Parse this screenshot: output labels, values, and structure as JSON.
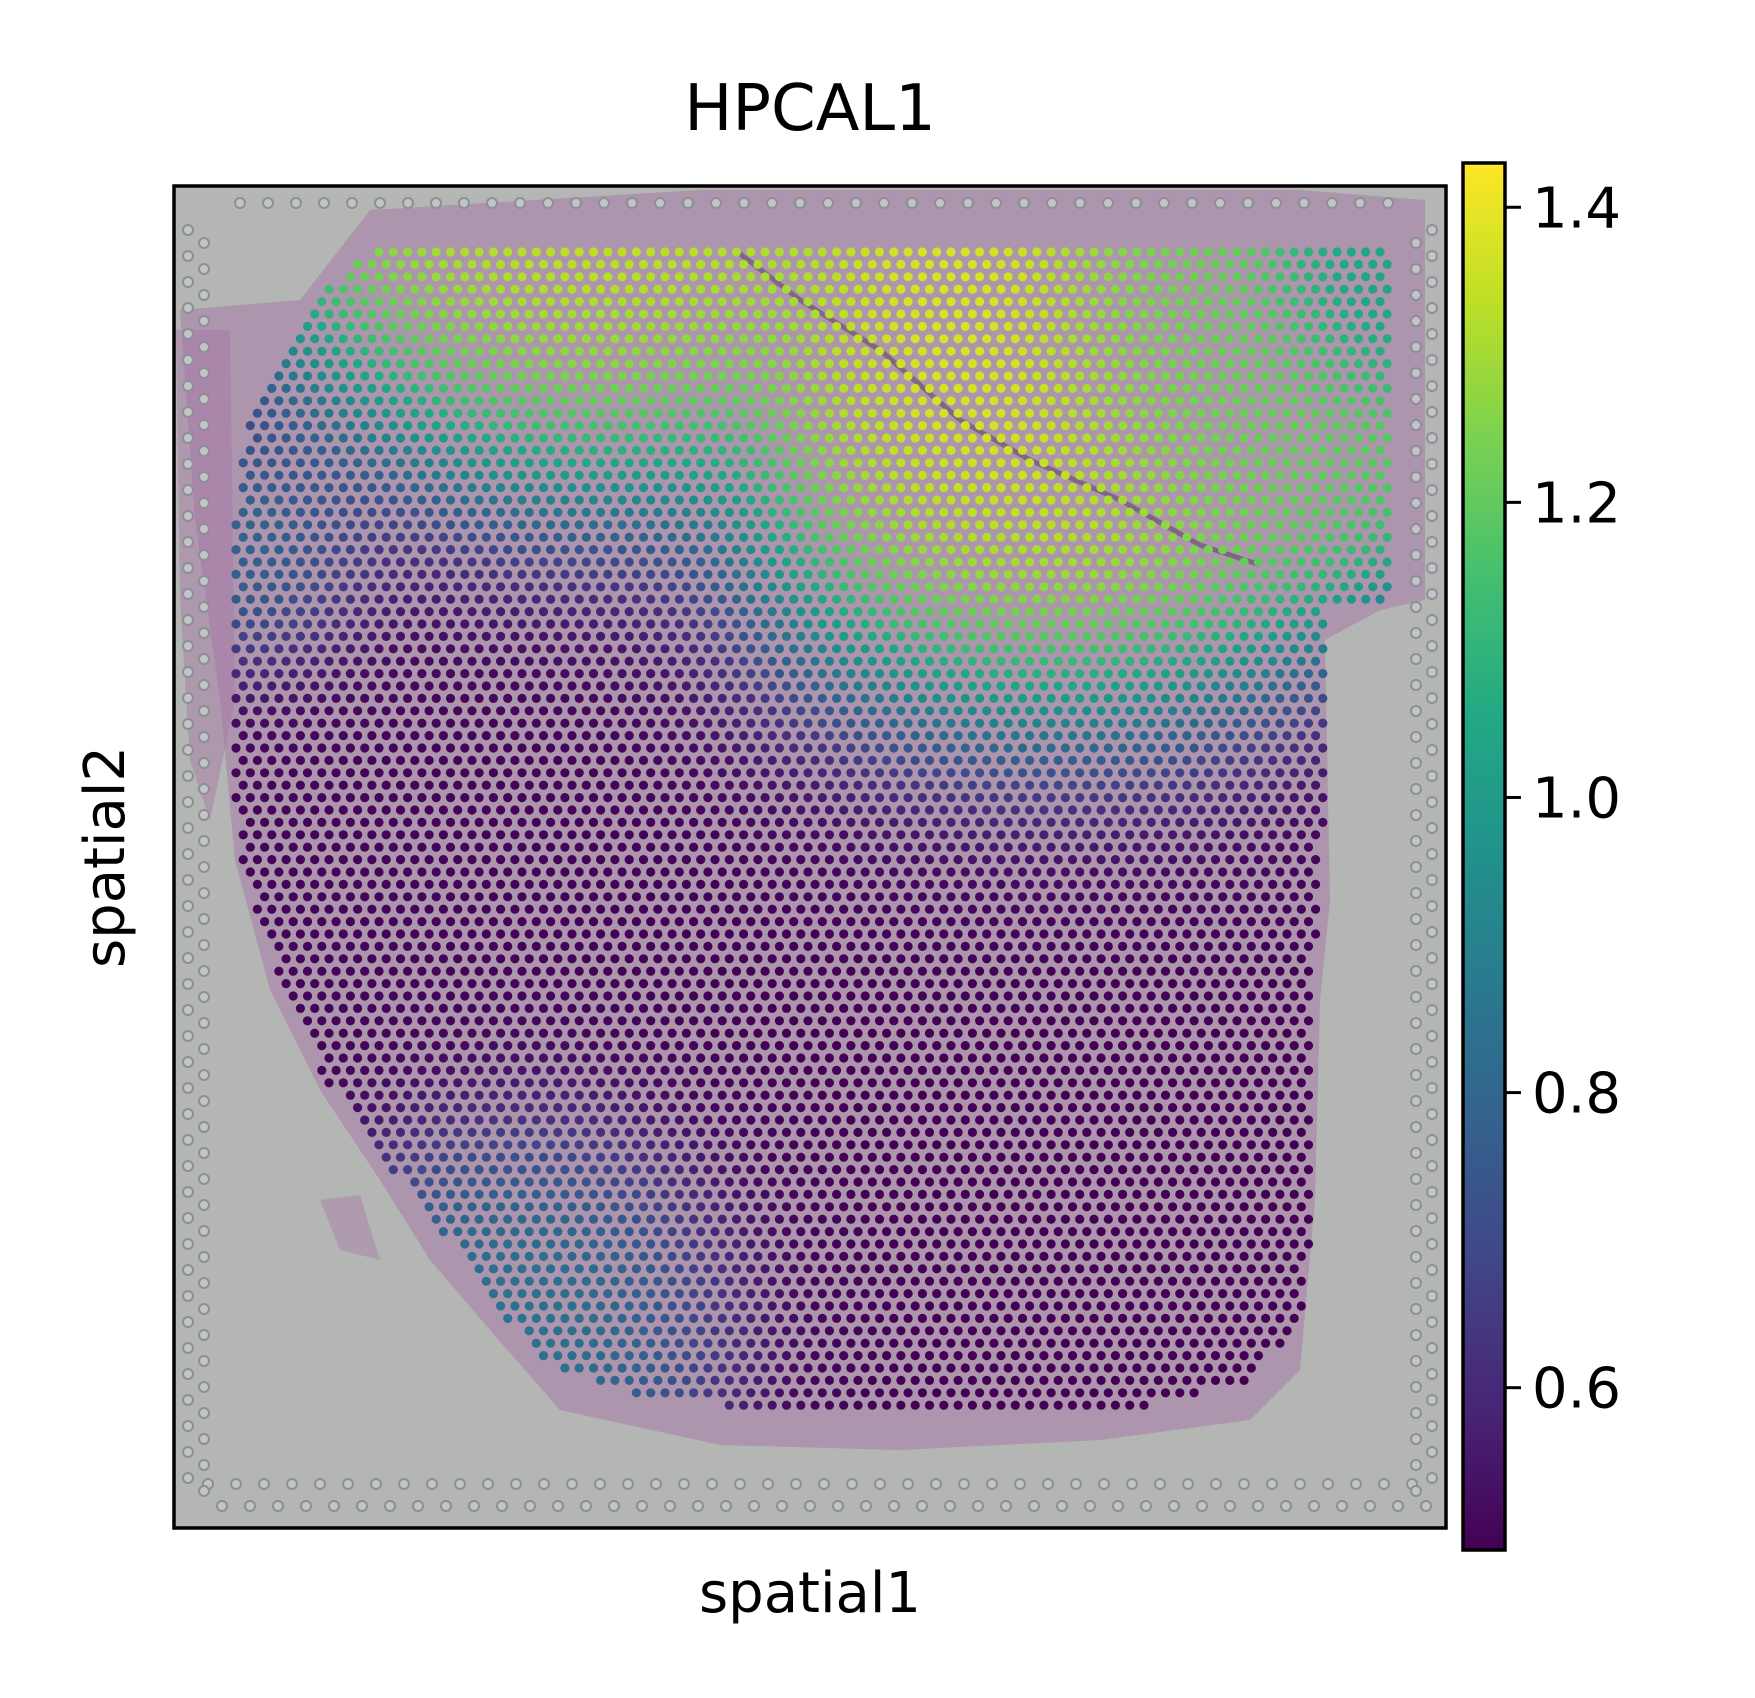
{
  "chart_data": {
    "type": "heatmap",
    "subtype": "spatial-spot-map",
    "title": "HPCAL1",
    "xlabel": "spatial1",
    "ylabel": "spatial2",
    "x_ticks": [],
    "y_ticks": [],
    "grid": false,
    "background": "H&E tissue histology image",
    "colormap": "viridis",
    "colorbar": {
      "min": 0.49,
      "max": 1.43,
      "ticks": [
        0.6,
        0.8,
        1.0,
        1.2,
        1.4
      ],
      "tick_labels": [
        "0.6",
        "0.8",
        "1.0",
        "1.2",
        "1.4"
      ],
      "placement": "right"
    },
    "value_regions": [
      {
        "region": "upper-left band",
        "value": 1.38
      },
      {
        "region": "diagonal band from upper-center to right-middle",
        "value": 1.42
      },
      {
        "region": "upper-right corner",
        "value": 1.2
      },
      {
        "region": "far-right top edge",
        "value": 1.02
      },
      {
        "region": "left edge",
        "value": 0.95
      },
      {
        "region": "bottom-left edge",
        "value": 0.9
      },
      {
        "region": "left-middle interior",
        "value": 0.5
      },
      {
        "region": "center-bottom interior",
        "value": 0.49
      }
    ]
  },
  "colors": {
    "slide_background": "#b4b6b3",
    "tissue_stain": "#a77aa8",
    "fiducial_ring": "#8d8f98",
    "axes_frame": "#000000"
  }
}
